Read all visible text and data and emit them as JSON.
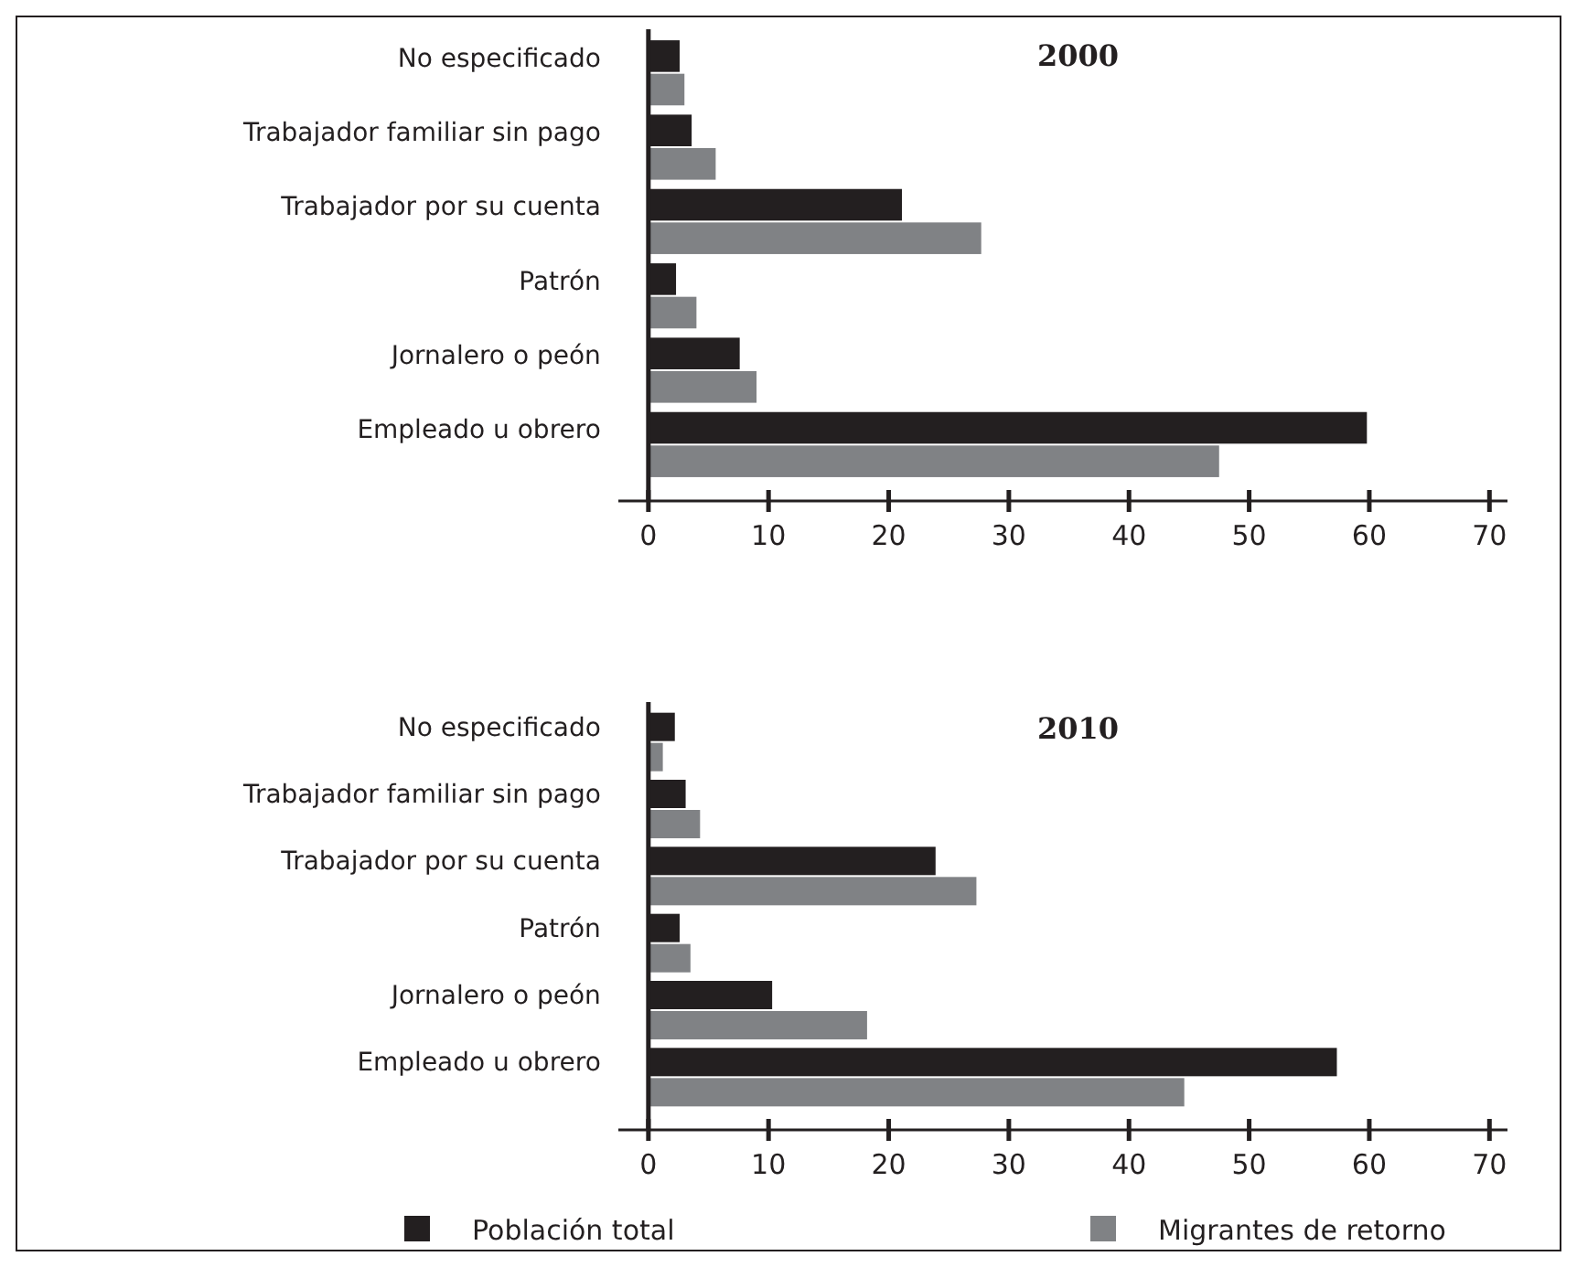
{
  "chart_data": [
    {
      "type": "bar",
      "orientation": "horizontal",
      "title": "2000",
      "categories": [
        "No especificado",
        "Trabajador familiar sin pago",
        "Trabajador por su cuenta",
        "Patrón",
        "Jornalero o peón",
        "Empleado u obrero"
      ],
      "series": [
        {
          "color": "#231f20",
          "values": [
            2.6,
            3.6,
            21.1,
            2.3,
            7.6,
            59.8
          ]
        },
        {
          "color": "#808285",
          "values": [
            3.0,
            5.6,
            27.7,
            4.0,
            9.0,
            47.5
          ]
        }
      ],
      "xlim": [
        -2.5,
        71.5
      ],
      "xticks": [
        0,
        10,
        20,
        30,
        40,
        50,
        60,
        70
      ],
      "grid": false,
      "legend": false
    },
    {
      "type": "bar",
      "orientation": "horizontal",
      "title": "2010",
      "categories": [
        "No especificado",
        "Trabajador familiar sin pago",
        "Trabajador por su cuenta",
        "Patrón",
        "Jornalero o peón",
        "Empleado u obrero"
      ],
      "series": [
        {
          "name": "Población total",
          "color": "#231f20",
          "values": [
            2.2,
            3.1,
            23.9,
            2.6,
            10.3,
            57.3
          ]
        },
        {
          "name": "Migrantes de retorno",
          "color": "#808285",
          "values": [
            1.2,
            4.3,
            27.3,
            3.5,
            18.2,
            44.6
          ]
        }
      ],
      "xlim": [
        -2.5,
        71.5
      ],
      "xticks": [
        0,
        10,
        20,
        30,
        40,
        50,
        60,
        70
      ],
      "grid": false,
      "legend": "bottom"
    }
  ]
}
